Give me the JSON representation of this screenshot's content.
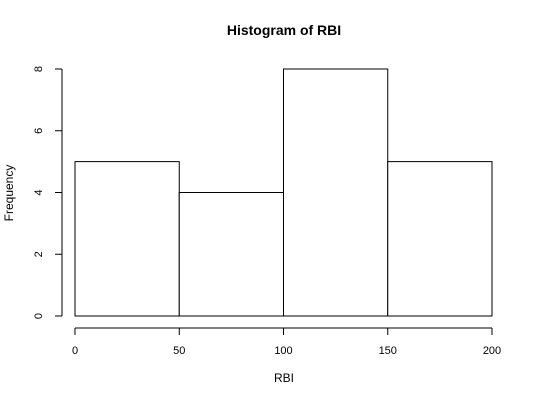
{
  "chart_data": {
    "type": "bar",
    "subtype": "histogram",
    "title": "Histogram of RBI",
    "xlabel": "RBI",
    "ylabel": "Frequency",
    "bins": [
      {
        "from": 0,
        "to": 50,
        "count": 5
      },
      {
        "from": 50,
        "to": 100,
        "count": 4
      },
      {
        "from": 100,
        "to": 150,
        "count": 8
      },
      {
        "from": 150,
        "to": 200,
        "count": 5
      }
    ],
    "xlim": [
      0,
      200
    ],
    "ylim": [
      0,
      8
    ],
    "xticks": [
      0,
      50,
      100,
      150,
      200
    ],
    "yticks": [
      0,
      2,
      4,
      6,
      8
    ],
    "grid": false,
    "legend": "none",
    "colors": {
      "bar_fill": "#ffffff",
      "bar_stroke": "#000000"
    }
  }
}
